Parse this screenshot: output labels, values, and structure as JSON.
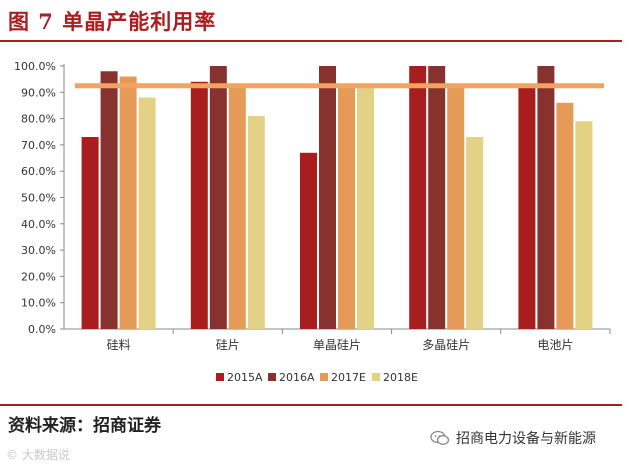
{
  "header": {
    "title": "图 7 单晶产能利用率"
  },
  "footer": {
    "source": "资料来源：招商证券",
    "wechat_account": "招商电力设备与新能源",
    "watermark": "© 大数据说"
  },
  "chart_data": {
    "type": "bar",
    "categories": [
      "硅料",
      "硅片",
      "单晶硅片",
      "多晶硅片",
      "电池片"
    ],
    "series": [
      {
        "name": "2015A",
        "color": "#a81e1e",
        "values": [
          0.73,
          0.94,
          0.67,
          1.0,
          0.92
        ]
      },
      {
        "name": "2016A",
        "color": "#87322f",
        "values": [
          0.98,
          1.0,
          1.0,
          1.0,
          1.0
        ]
      },
      {
        "name": "2017E",
        "color": "#e59a57",
        "values": [
          0.96,
          0.92,
          0.92,
          0.92,
          0.86
        ]
      },
      {
        "name": "2018E",
        "color": "#e3d186",
        "values": [
          0.88,
          0.81,
          0.92,
          0.73,
          0.79
        ]
      }
    ],
    "reference_line": {
      "value": 0.925,
      "color": "#f3a25f"
    },
    "yticks": [
      "0.0%",
      "10.0%",
      "20.0%",
      "30.0%",
      "40.0%",
      "50.0%",
      "60.0%",
      "70.0%",
      "80.0%",
      "90.0%",
      "100.0%"
    ],
    "ylim": [
      0,
      1.0
    ],
    "legend_position": "bottom",
    "grid": false
  }
}
